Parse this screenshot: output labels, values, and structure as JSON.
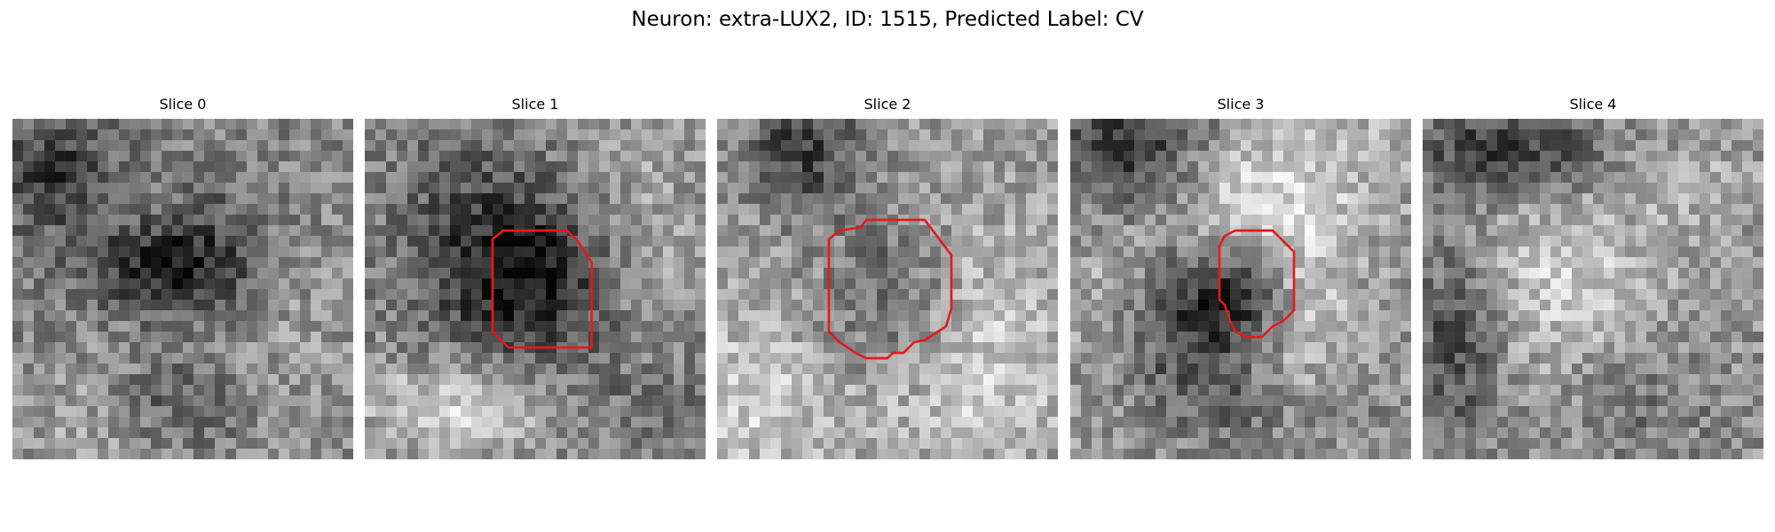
{
  "figure": {
    "title": "Neuron: extra-LUX2, ID: 1515, Predicted Label: CV"
  },
  "panels": [
    {
      "title": "Slice 0",
      "has_contour": false
    },
    {
      "title": "Slice 1",
      "has_contour": true
    },
    {
      "title": "Slice 2",
      "has_contour": true
    },
    {
      "title": "Slice 3",
      "has_contour": true
    },
    {
      "title": "Slice 4",
      "has_contour": false
    }
  ],
  "image_grid_size": 32,
  "colormap": "gray",
  "contour_color": "#e31a1c"
}
